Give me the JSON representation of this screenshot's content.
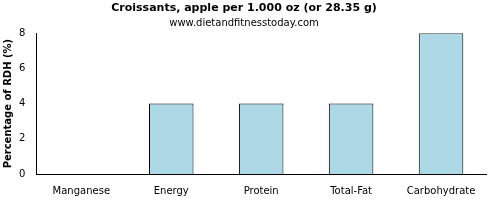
{
  "chart_data": {
    "type": "bar",
    "title": "Croissants, apple per 1.000 oz (or 28.35 g)",
    "subtitle": "www.dietandfitnesstoday.com",
    "y_label": "Percentage of RDH (%)",
    "categories": [
      "Manganese",
      "Energy",
      "Protein",
      "Total-Fat",
      "Carbohydrate"
    ],
    "values": [
      0,
      4,
      4,
      4,
      8
    ],
    "color": "#add8e6",
    "ylim": [
      0,
      8
    ],
    "yticks": [
      0,
      2,
      4,
      6,
      8
    ],
    "grid": false
  }
}
